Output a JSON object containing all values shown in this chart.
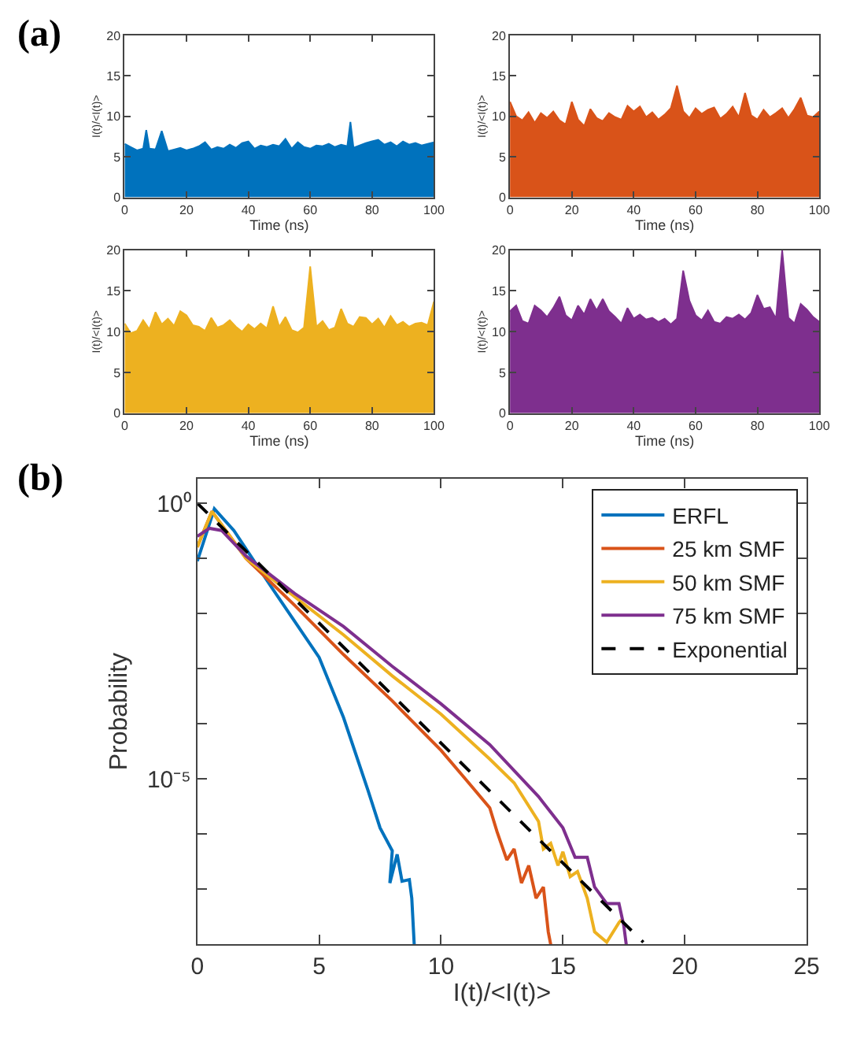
{
  "chart_data": [
    {
      "type": "area",
      "annotations": [
        "(a)"
      ],
      "xlabel": "Time (ns)",
      "ylabel": "I(t)/<I(t)>",
      "xlim": [
        0,
        100
      ],
      "xticks": [
        0,
        20,
        40,
        60,
        80,
        100
      ],
      "ylim": [
        0,
        20
      ],
      "yticks": [
        0,
        5,
        10,
        15,
        20
      ],
      "x": [
        0,
        2,
        4,
        6,
        7,
        8,
        10,
        12,
        14,
        16,
        18,
        20,
        22,
        24,
        26,
        28,
        30,
        32,
        34,
        36,
        38,
        40,
        42,
        44,
        46,
        48,
        50,
        52,
        54,
        56,
        58,
        60,
        62,
        64,
        66,
        68,
        70,
        72,
        73,
        74,
        76,
        78,
        80,
        82,
        84,
        86,
        88,
        90,
        92,
        94,
        96,
        98,
        100
      ],
      "series": [
        {
          "color": "#0072bd",
          "values": [
            6.6,
            6.2,
            5.8,
            6.0,
            8.3,
            6.0,
            5.9,
            8.2,
            5.7,
            5.9,
            6.1,
            5.8,
            6.0,
            6.3,
            6.8,
            5.9,
            6.2,
            6.0,
            6.5,
            6.1,
            6.7,
            6.9,
            6.0,
            6.4,
            6.2,
            6.5,
            6.3,
            7.2,
            6.0,
            6.8,
            6.2,
            6.0,
            6.4,
            6.3,
            6.6,
            6.2,
            6.5,
            6.3,
            9.3,
            6.1,
            6.4,
            6.7,
            6.9,
            7.1,
            6.5,
            6.8,
            6.3,
            6.9,
            6.5,
            6.7,
            6.4,
            6.6,
            6.8
          ]
        }
      ]
    },
    {
      "type": "area",
      "xlabel": "Time (ns)",
      "ylabel": "I(t)/<I(t)>",
      "xlim": [
        0,
        100
      ],
      "xticks": [
        0,
        20,
        40,
        60,
        80,
        100
      ],
      "ylim": [
        0,
        20
      ],
      "yticks": [
        0,
        5,
        10,
        15,
        20
      ],
      "x": [
        0,
        2,
        4,
        6,
        8,
        10,
        12,
        14,
        16,
        18,
        20,
        22,
        24,
        26,
        28,
        30,
        32,
        34,
        36,
        38,
        40,
        42,
        44,
        46,
        48,
        50,
        52,
        54,
        56,
        58,
        60,
        62,
        64,
        66,
        68,
        70,
        72,
        74,
        76,
        78,
        80,
        82,
        84,
        86,
        88,
        90,
        92,
        94,
        96,
        98,
        100
      ],
      "series": [
        {
          "color": "#d95319",
          "values": [
            11.8,
            10.0,
            9.5,
            10.5,
            9.2,
            10.4,
            9.8,
            10.6,
            9.5,
            9.0,
            11.8,
            9.6,
            8.8,
            10.9,
            9.8,
            9.4,
            10.4,
            9.9,
            9.6,
            11.3,
            10.6,
            11.2,
            9.9,
            10.5,
            9.6,
            10.2,
            11.0,
            13.8,
            10.6,
            9.8,
            11.0,
            10.3,
            10.8,
            11.1,
            9.7,
            10.3,
            11.2,
            9.9,
            12.9,
            10.1,
            9.6,
            10.8,
            9.9,
            10.4,
            11.0,
            9.8,
            10.9,
            12.3,
            10.1,
            9.9,
            10.6
          ]
        }
      ]
    },
    {
      "type": "area",
      "xlabel": "Time (ns)",
      "ylabel": "I(t)/<I(t)>",
      "xlim": [
        0,
        100
      ],
      "xticks": [
        0,
        20,
        40,
        60,
        80,
        100
      ],
      "ylim": [
        0,
        20
      ],
      "yticks": [
        0,
        5,
        10,
        15,
        20
      ],
      "x": [
        0,
        2,
        4,
        6,
        8,
        10,
        12,
        14,
        16,
        18,
        20,
        22,
        24,
        26,
        28,
        30,
        32,
        34,
        36,
        38,
        40,
        42,
        44,
        46,
        48,
        50,
        52,
        54,
        56,
        58,
        60,
        62,
        64,
        66,
        68,
        70,
        72,
        74,
        76,
        78,
        80,
        82,
        84,
        86,
        88,
        90,
        92,
        94,
        96,
        98,
        100
      ],
      "series": [
        {
          "color": "#edb120",
          "values": [
            11.0,
            9.8,
            10.1,
            11.4,
            10.3,
            12.4,
            10.9,
            11.6,
            10.7,
            12.5,
            12.0,
            10.8,
            10.6,
            10.1,
            11.7,
            10.5,
            10.8,
            11.4,
            10.6,
            10.0,
            10.9,
            10.3,
            11.0,
            10.4,
            13.1,
            10.6,
            11.8,
            10.2,
            9.9,
            10.5,
            18.0,
            10.6,
            11.3,
            10.2,
            10.5,
            12.8,
            11.0,
            10.6,
            11.8,
            11.7,
            10.9,
            11.6,
            10.5,
            11.9,
            10.8,
            11.2,
            10.6,
            11.0,
            11.1,
            10.8,
            13.7
          ]
        }
      ]
    },
    {
      "type": "area",
      "xlabel": "Time (ns)",
      "ylabel": "I(t)/<I(t)>",
      "xlim": [
        0,
        100
      ],
      "xticks": [
        0,
        20,
        40,
        60,
        80,
        100
      ],
      "ylim": [
        0,
        20
      ],
      "yticks": [
        0,
        5,
        10,
        15,
        20
      ],
      "x": [
        0,
        2,
        4,
        6,
        8,
        10,
        12,
        14,
        16,
        18,
        20,
        22,
        24,
        26,
        28,
        30,
        32,
        34,
        36,
        38,
        40,
        42,
        44,
        46,
        48,
        50,
        52,
        54,
        56,
        58,
        60,
        62,
        64,
        66,
        68,
        70,
        72,
        74,
        76,
        78,
        80,
        82,
        84,
        86,
        88,
        90,
        92,
        94,
        96,
        98,
        100
      ],
      "series": [
        {
          "color": "#7e2f8e",
          "values": [
            12.5,
            13.2,
            11.3,
            11.0,
            13.2,
            12.6,
            11.8,
            12.9,
            14.3,
            12.0,
            11.4,
            13.2,
            12.1,
            14.0,
            12.6,
            14.0,
            12.5,
            11.8,
            11.0,
            12.9,
            11.6,
            12.1,
            11.5,
            11.7,
            11.2,
            11.6,
            10.9,
            11.6,
            17.5,
            13.8,
            12.0,
            11.4,
            12.6,
            11.2,
            11.0,
            11.8,
            11.6,
            12.1,
            11.5,
            12.3,
            14.5,
            12.8,
            13.0,
            11.6,
            20.0,
            11.7,
            11.0,
            13.4,
            12.7,
            11.8,
            11.2
          ]
        }
      ]
    },
    {
      "type": "line",
      "annotations": [
        "(b)"
      ],
      "xlabel": "I(t)/<I(t)>",
      "ylabel": "Probability",
      "log": "y",
      "legend": "top right",
      "line_style": "solid",
      "xlim": [
        0,
        25
      ],
      "xticks": [
        0,
        5,
        10,
        15,
        20,
        25
      ],
      "ylim": [
        1e-08,
        2.8
      ],
      "yticks": [
        {
          "value": 1,
          "label": "10⁰"
        },
        {
          "value": 0.1,
          "label": null
        },
        {
          "value": 0.01,
          "label": null
        },
        {
          "value": 0.001,
          "label": null
        },
        {
          "value": 0.0001,
          "label": null
        },
        {
          "value": 1e-05,
          "label": "10⁻⁵"
        },
        {
          "value": 1e-06,
          "label": null
        },
        {
          "value": 1e-07,
          "label": null
        }
      ],
      "series": [
        {
          "name": "ERFL",
          "color": "#0072bd",
          "x": [
            0,
            0.7,
            1.5,
            3,
            5,
            6,
            7,
            7.5,
            8,
            7.9,
            8.2,
            8.4,
            8.7,
            8.8,
            8.9
          ],
          "values": [
            0.089,
            0.79,
            0.32,
            0.032,
            0.0016,
            0.00013,
            6.3e-06,
            1.3e-06,
            5e-07,
            1.3e-07,
            4.3e-07,
            1.4e-07,
            1.5e-07,
            6.9e-08,
            1e-08
          ]
        },
        {
          "name": "25 km SMF",
          "color": "#d95319",
          "x": [
            0,
            0.6,
            2,
            4,
            6,
            8,
            10,
            11,
            12,
            12.3,
            12.7,
            13,
            13.3,
            13.6,
            13.9,
            14.2,
            14.4,
            14.5
          ],
          "values": [
            0.16,
            0.71,
            0.1,
            0.014,
            0.0018,
            0.00026,
            3.3e-05,
            1e-05,
            3e-06,
            1.1e-06,
            3.4e-07,
            5.4e-07,
            1.3e-07,
            2.7e-07,
            6.9e-08,
            1.1e-07,
            1.7e-08,
            1e-08
          ]
        },
        {
          "name": "50 km SMF",
          "color": "#edb120",
          "x": [
            0,
            0.6,
            2,
            4,
            6,
            8,
            10,
            12,
            13,
            14,
            14.2,
            14.5,
            14.8,
            15,
            15.3,
            15.6,
            16,
            16.3,
            16.8,
            17.3,
            17.4
          ],
          "values": [
            0.16,
            0.71,
            0.1,
            0.02,
            0.0041,
            0.00074,
            0.00015,
            2.3e-05,
            8.5e-06,
            1.7e-06,
            5.4e-07,
            6.8e-07,
            2.7e-07,
            4.8e-07,
            1.7e-07,
            2.1e-07,
            6.9e-08,
            1.7e-08,
            1.1e-08,
            2.5e-08,
            2.8e-08
          ]
        },
        {
          "name": "75 km SMF",
          "color": "#7e2f8e",
          "x": [
            0,
            0.5,
            1,
            2,
            4,
            6,
            8,
            10,
            12,
            14,
            15,
            15.5,
            16,
            16.3,
            16.8,
            17.3,
            17.5,
            17.6
          ],
          "values": [
            0.25,
            0.35,
            0.32,
            0.11,
            0.023,
            0.0058,
            0.0011,
            0.00023,
            4.2e-05,
            4.8e-06,
            1.3e-06,
            3.8e-07,
            3.8e-07,
            1.1e-07,
            5.5e-08,
            5.5e-08,
            2.2e-08,
            1e-08
          ]
        },
        {
          "name": "Exponential",
          "color": "#000000",
          "line_style": "dashed",
          "x": [
            0,
            18.3
          ],
          "values": [
            1,
            1.1e-08
          ]
        }
      ]
    }
  ]
}
